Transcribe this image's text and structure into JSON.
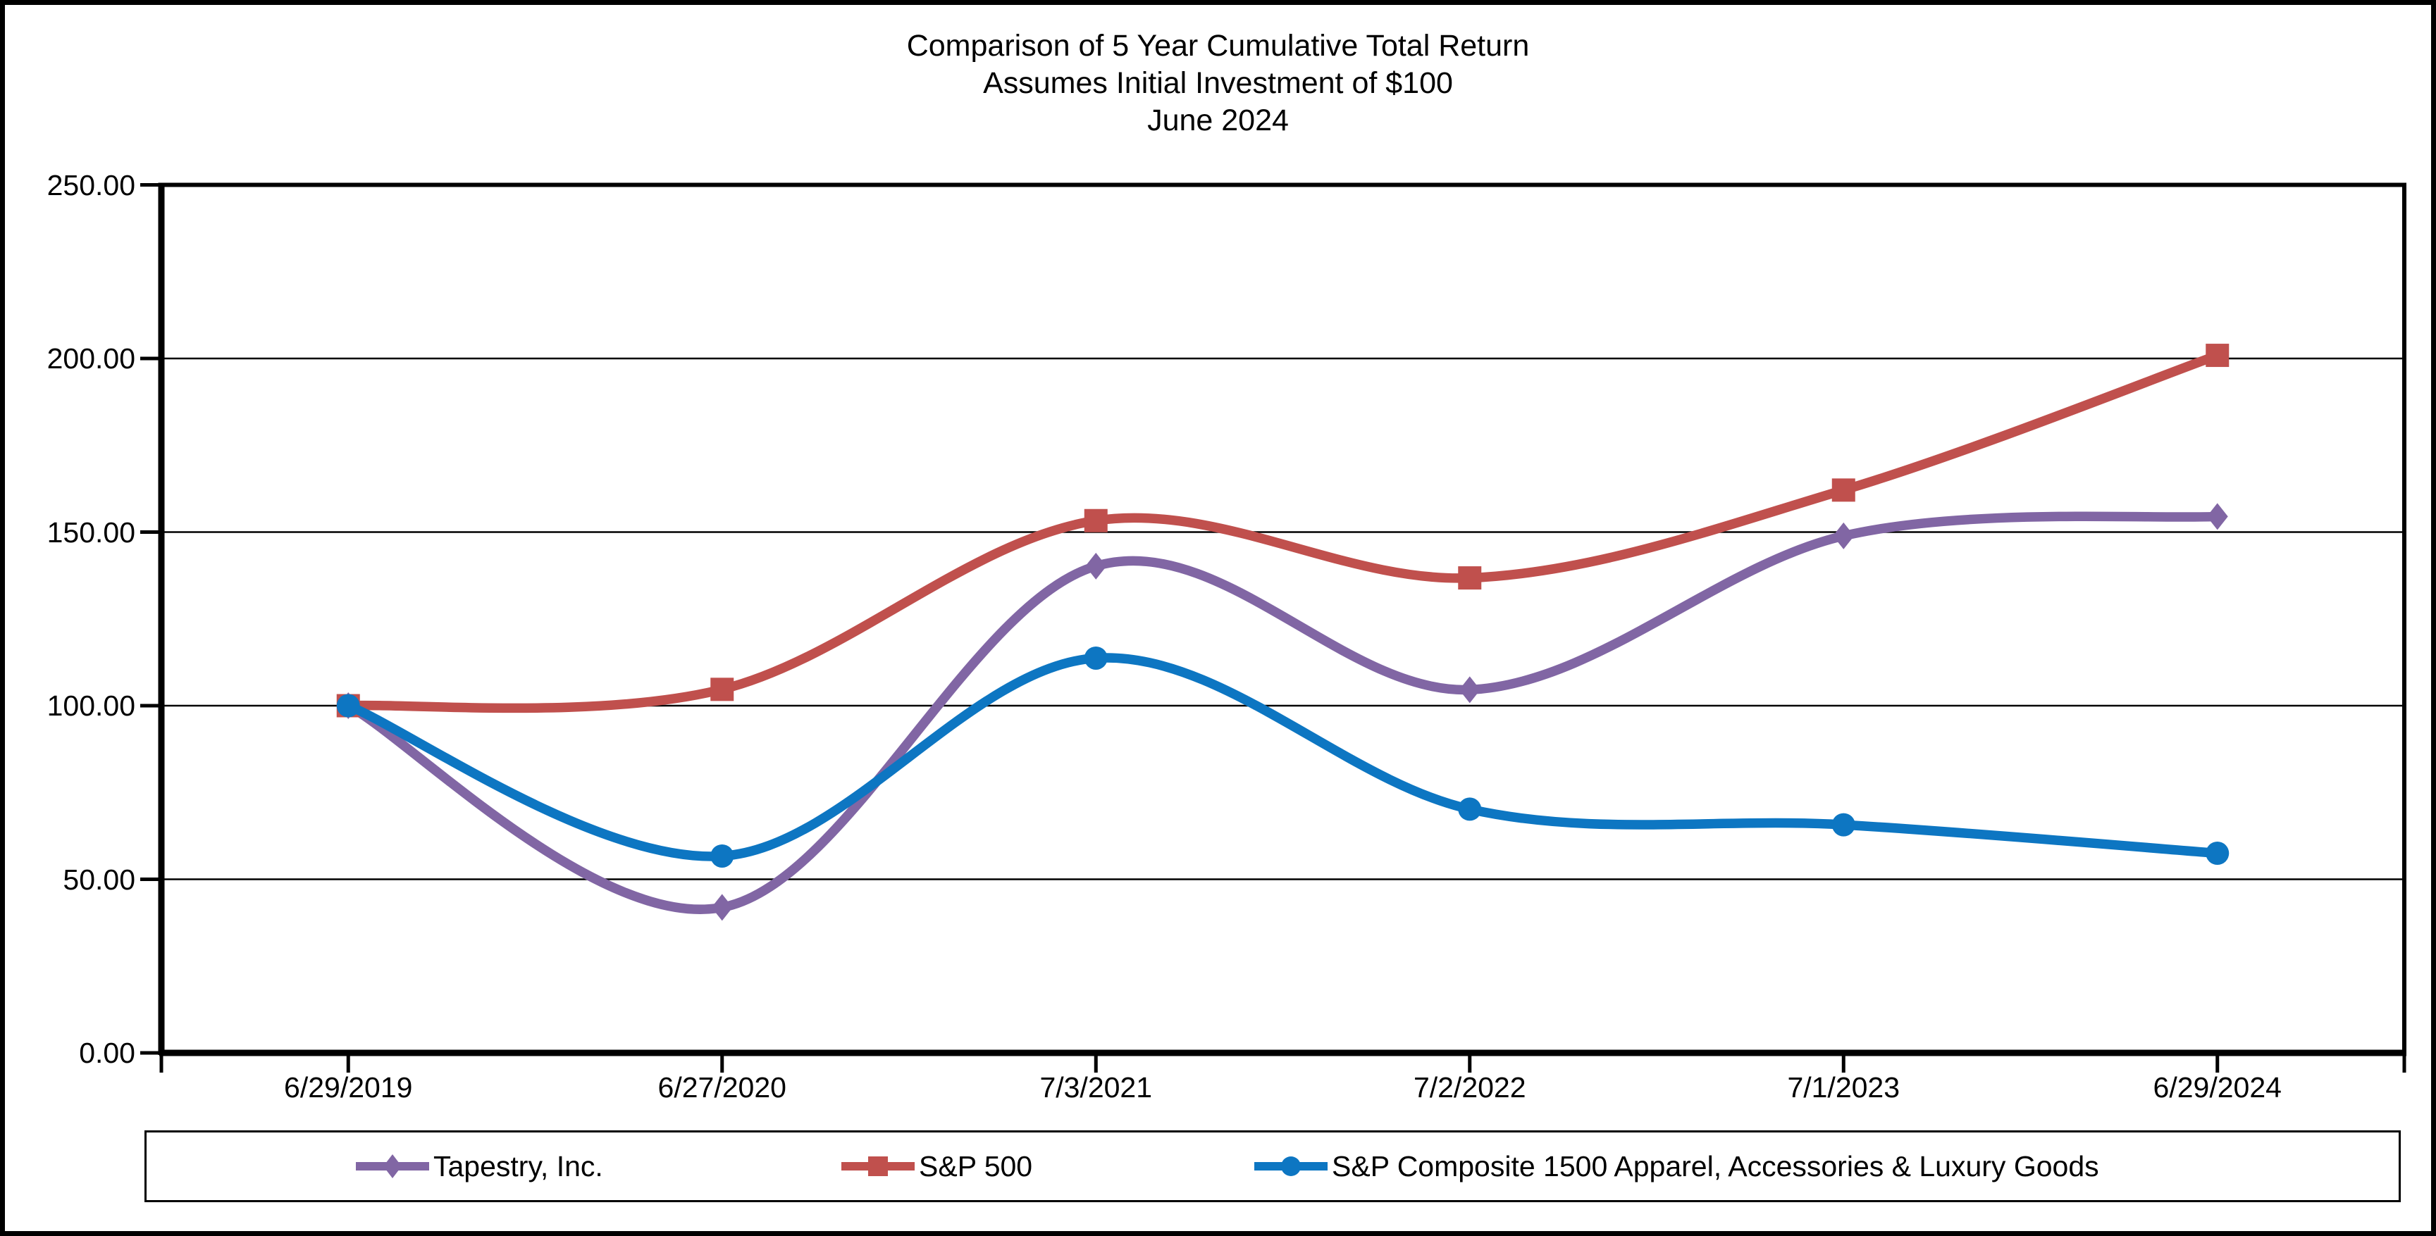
{
  "chart_data": {
    "type": "line",
    "smoothed": true,
    "title_lines": [
      "Comparison of 5 Year Cumulative Total Return",
      "Assumes Initial Investment of $100",
      "June 2024"
    ],
    "categories": [
      "6/29/2019",
      "6/27/2020",
      "7/3/2021",
      "7/2/2022",
      "7/1/2023",
      "6/29/2024"
    ],
    "series": [
      {
        "name": "Tapestry, Inc.",
        "marker": "diamond",
        "color": "#8166A4",
        "values": [
          100.0,
          41.9,
          140.2,
          104.6,
          148.9,
          154.5
        ]
      },
      {
        "name": "S&P 500",
        "marker": "square",
        "color": "#C0504D",
        "values": [
          100.0,
          104.7,
          153.3,
          136.8,
          162.1,
          200.9
        ]
      },
      {
        "name": "S&P Composite 1500 Apparel, Accessories & Luxury Goods",
        "marker": "circle",
        "color": "#0D76C2",
        "values": [
          100.0,
          56.7,
          113.7,
          70.2,
          65.7,
          57.5
        ]
      }
    ],
    "ylim": [
      0,
      250
    ],
    "ytick_step": 50,
    "ytick_labels": [
      "0.00",
      "50.00",
      "100.00",
      "150.00",
      "200.00",
      "250.00"
    ],
    "xlabel": "",
    "ylabel": "",
    "grid": true,
    "legend_position": "bottom",
    "axis_color": "#000000",
    "background_color": "#FFFFFF"
  }
}
